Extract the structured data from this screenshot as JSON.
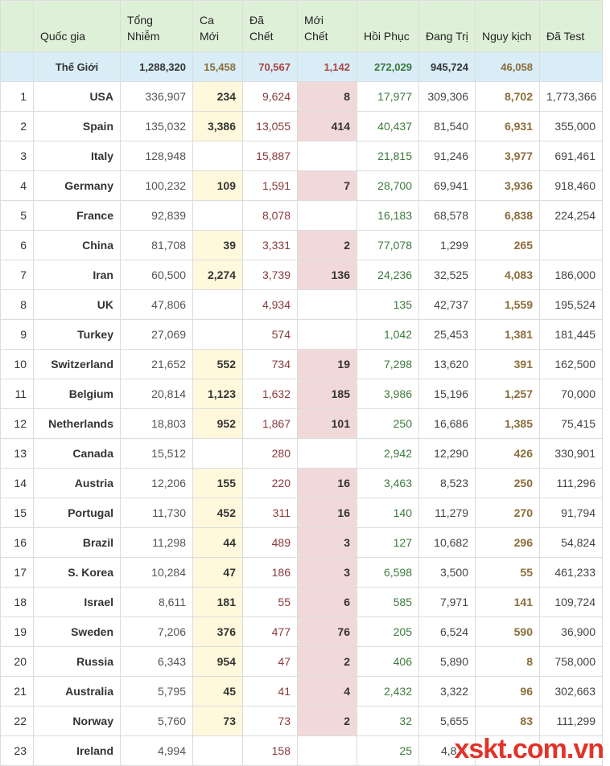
{
  "headers": [
    "",
    "Quốc gia",
    "Tổng Nhiễm",
    "Ca Mới",
    "Đã Chết",
    "Mới Chết",
    "Hồi Phục",
    "Đang Trị",
    "Nguy kịch",
    "Đã Test"
  ],
  "world": {
    "label": "Thế Giới",
    "total": "1,288,320",
    "new_cases": "15,458",
    "deaths": "70,567",
    "new_deaths": "1,142",
    "recovered": "272,029",
    "active": "945,724",
    "serious": "46,058",
    "tested": ""
  },
  "rows": [
    {
      "rank": "1",
      "country": "USA",
      "total": "336,907",
      "new_cases": "234",
      "deaths": "9,624",
      "new_deaths": "8",
      "recovered": "17,977",
      "active": "309,306",
      "serious": "8,702",
      "tested": "1,773,366"
    },
    {
      "rank": "2",
      "country": "Spain",
      "total": "135,032",
      "new_cases": "3,386",
      "deaths": "13,055",
      "new_deaths": "414",
      "recovered": "40,437",
      "active": "81,540",
      "serious": "6,931",
      "tested": "355,000"
    },
    {
      "rank": "3",
      "country": "Italy",
      "total": "128,948",
      "new_cases": "",
      "deaths": "15,887",
      "new_deaths": "",
      "recovered": "21,815",
      "active": "91,246",
      "serious": "3,977",
      "tested": "691,461"
    },
    {
      "rank": "4",
      "country": "Germany",
      "total": "100,232",
      "new_cases": "109",
      "deaths": "1,591",
      "new_deaths": "7",
      "recovered": "28,700",
      "active": "69,941",
      "serious": "3,936",
      "tested": "918,460"
    },
    {
      "rank": "5",
      "country": "France",
      "total": "92,839",
      "new_cases": "",
      "deaths": "8,078",
      "new_deaths": "",
      "recovered": "16,183",
      "active": "68,578",
      "serious": "6,838",
      "tested": "224,254"
    },
    {
      "rank": "6",
      "country": "China",
      "total": "81,708",
      "new_cases": "39",
      "deaths": "3,331",
      "new_deaths": "2",
      "recovered": "77,078",
      "active": "1,299",
      "serious": "265",
      "tested": ""
    },
    {
      "rank": "7",
      "country": "Iran",
      "total": "60,500",
      "new_cases": "2,274",
      "deaths": "3,739",
      "new_deaths": "136",
      "recovered": "24,236",
      "active": "32,525",
      "serious": "4,083",
      "tested": "186,000"
    },
    {
      "rank": "8",
      "country": "UK",
      "total": "47,806",
      "new_cases": "",
      "deaths": "4,934",
      "new_deaths": "",
      "recovered": "135",
      "active": "42,737",
      "serious": "1,559",
      "tested": "195,524"
    },
    {
      "rank": "9",
      "country": "Turkey",
      "total": "27,069",
      "new_cases": "",
      "deaths": "574",
      "new_deaths": "",
      "recovered": "1,042",
      "active": "25,453",
      "serious": "1,381",
      "tested": "181,445"
    },
    {
      "rank": "10",
      "country": "Switzerland",
      "total": "21,652",
      "new_cases": "552",
      "deaths": "734",
      "new_deaths": "19",
      "recovered": "7,298",
      "active": "13,620",
      "serious": "391",
      "tested": "162,500"
    },
    {
      "rank": "11",
      "country": "Belgium",
      "total": "20,814",
      "new_cases": "1,123",
      "deaths": "1,632",
      "new_deaths": "185",
      "recovered": "3,986",
      "active": "15,196",
      "serious": "1,257",
      "tested": "70,000"
    },
    {
      "rank": "12",
      "country": "Netherlands",
      "total": "18,803",
      "new_cases": "952",
      "deaths": "1,867",
      "new_deaths": "101",
      "recovered": "250",
      "active": "16,686",
      "serious": "1,385",
      "tested": "75,415"
    },
    {
      "rank": "13",
      "country": "Canada",
      "total": "15,512",
      "new_cases": "",
      "deaths": "280",
      "new_deaths": "",
      "recovered": "2,942",
      "active": "12,290",
      "serious": "426",
      "tested": "330,901"
    },
    {
      "rank": "14",
      "country": "Austria",
      "total": "12,206",
      "new_cases": "155",
      "deaths": "220",
      "new_deaths": "16",
      "recovered": "3,463",
      "active": "8,523",
      "serious": "250",
      "tested": "111,296"
    },
    {
      "rank": "15",
      "country": "Portugal",
      "total": "11,730",
      "new_cases": "452",
      "deaths": "311",
      "new_deaths": "16",
      "recovered": "140",
      "active": "11,279",
      "serious": "270",
      "tested": "91,794"
    },
    {
      "rank": "16",
      "country": "Brazil",
      "total": "11,298",
      "new_cases": "44",
      "deaths": "489",
      "new_deaths": "3",
      "recovered": "127",
      "active": "10,682",
      "serious": "296",
      "tested": "54,824"
    },
    {
      "rank": "17",
      "country": "S. Korea",
      "total": "10,284",
      "new_cases": "47",
      "deaths": "186",
      "new_deaths": "3",
      "recovered": "6,598",
      "active": "3,500",
      "serious": "55",
      "tested": "461,233"
    },
    {
      "rank": "18",
      "country": "Israel",
      "total": "8,611",
      "new_cases": "181",
      "deaths": "55",
      "new_deaths": "6",
      "recovered": "585",
      "active": "7,971",
      "serious": "141",
      "tested": "109,724"
    },
    {
      "rank": "19",
      "country": "Sweden",
      "total": "7,206",
      "new_cases": "376",
      "deaths": "477",
      "new_deaths": "76",
      "recovered": "205",
      "active": "6,524",
      "serious": "590",
      "tested": "36,900"
    },
    {
      "rank": "20",
      "country": "Russia",
      "total": "6,343",
      "new_cases": "954",
      "deaths": "47",
      "new_deaths": "2",
      "recovered": "406",
      "active": "5,890",
      "serious": "8",
      "tested": "758,000"
    },
    {
      "rank": "21",
      "country": "Australia",
      "total": "5,795",
      "new_cases": "45",
      "deaths": "41",
      "new_deaths": "4",
      "recovered": "2,432",
      "active": "3,322",
      "serious": "96",
      "tested": "302,663"
    },
    {
      "rank": "22",
      "country": "Norway",
      "total": "5,760",
      "new_cases": "73",
      "deaths": "73",
      "new_deaths": "2",
      "recovered": "32",
      "active": "5,655",
      "serious": "83",
      "tested": "111,299"
    },
    {
      "rank": "23",
      "country": "Ireland",
      "total": "4,994",
      "new_cases": "",
      "deaths": "158",
      "new_deaths": "",
      "recovered": "25",
      "active": "4,811",
      "serious": "",
      "tested": ""
    }
  ],
  "watermark": "xskt.com.vn"
}
